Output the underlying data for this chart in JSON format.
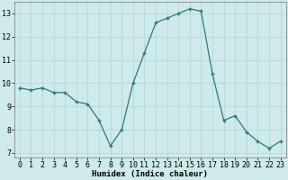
{
  "x": [
    0,
    1,
    2,
    3,
    4,
    5,
    6,
    7,
    8,
    9,
    10,
    11,
    12,
    13,
    14,
    15,
    16,
    17,
    18,
    19,
    20,
    21,
    22,
    23
  ],
  "y": [
    9.8,
    9.7,
    9.8,
    9.6,
    9.6,
    9.2,
    9.1,
    8.4,
    7.3,
    8.0,
    10.0,
    11.3,
    12.6,
    12.8,
    13.0,
    13.2,
    13.1,
    10.4,
    8.4,
    8.6,
    7.9,
    7.5,
    7.2,
    7.5
  ],
  "line_color": "#2e7b6e",
  "marker_color": "#2e7b6e",
  "bg_color": "#ceeaea",
  "grid_color": "#b8d8d8",
  "xlabel": "Humidex (Indice chaleur)",
  "ylim": [
    6.8,
    13.5
  ],
  "xlim": [
    -0.5,
    23.5
  ],
  "yticks": [
    7,
    8,
    9,
    10,
    11,
    12,
    13
  ],
  "xticks": [
    0,
    1,
    2,
    3,
    4,
    5,
    6,
    7,
    8,
    9,
    10,
    11,
    12,
    13,
    14,
    15,
    16,
    17,
    18,
    19,
    20,
    21,
    22,
    23
  ],
  "xlabel_fontsize": 6.5,
  "tick_fontsize": 6.0,
  "xlabel_bold": true
}
